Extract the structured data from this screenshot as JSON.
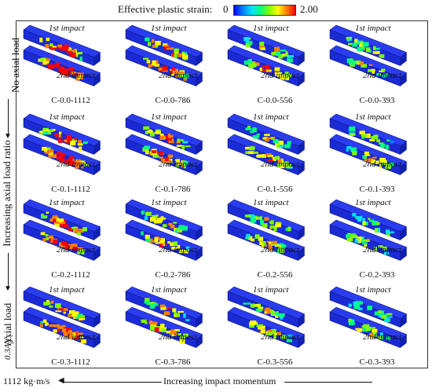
{
  "legend": {
    "title": "Effective plastic strain:",
    "min": "0",
    "max": "2.00",
    "colors": [
      "#0000ff",
      "#0080ff",
      "#00e0ff",
      "#00ff80",
      "#80ff00",
      "#ffff00",
      "#ff8000",
      "#ff0000"
    ]
  },
  "side": {
    "top": "No axial load",
    "middle": "Increasing axial load ratio",
    "bottom": "Axial load",
    "bottom_formula": "0.3A_g f'_c"
  },
  "bottom_axis": {
    "left": "1112 kg·m/s",
    "middle": "Increasing impact momentum",
    "right": "393 kg·m/s"
  },
  "impact_labels": {
    "first": "1st impact",
    "second": "2nd impact"
  },
  "rows": [
    {
      "cells": [
        "C-0.0-1112",
        "C-0.0-786",
        "C-0.0-556",
        "C-0.0-393"
      ]
    },
    {
      "cells": [
        "C-0.1-1112",
        "C-0.1-786",
        "C-0.1-556",
        "C-0.1-393"
      ]
    },
    {
      "cells": [
        "C-0.2-1112",
        "C-0.2-786",
        "C-0.2-556",
        "C-0.2-393"
      ]
    },
    {
      "cells": [
        "C-0.3-1112",
        "C-0.3-786",
        "C-0.3-556",
        "C-0.3-393"
      ]
    }
  ]
}
